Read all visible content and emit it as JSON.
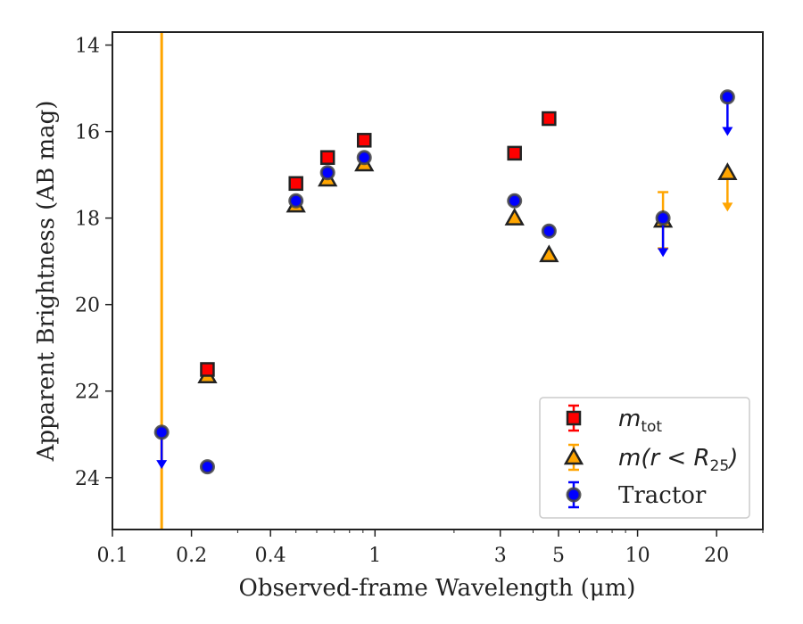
{
  "chart_data": {
    "type": "scatter",
    "xlabel": "Observed-frame Wavelength (μm)",
    "ylabel": "Apparent Brightness (AB mag)",
    "xscale": "log",
    "yaxis_inverted": true,
    "xlim": [
      0.1,
      30
    ],
    "ylim": [
      25.2,
      13.7
    ],
    "x_ticks": [
      0.1,
      0.2,
      0.4,
      1,
      3,
      5,
      10,
      20
    ],
    "x_tick_labels": [
      "0.1",
      "0.2",
      "0.4",
      "1",
      "3",
      "5",
      "10",
      "20"
    ],
    "y_ticks": [
      14,
      16,
      18,
      20,
      22,
      24
    ],
    "y_tick_labels": [
      "14",
      "16",
      "18",
      "20",
      "22",
      "24"
    ],
    "grid": false,
    "legend_position": "lower-right",
    "vertical_line": {
      "x": 0.154,
      "color": "#FFA500"
    },
    "series": [
      {
        "name": "m_tot",
        "legend_main": "m",
        "legend_sub": "tot",
        "marker": "square",
        "color": "#FF0000",
        "edge_color": "#222222",
        "points": [
          {
            "x": 0.23,
            "y": 21.5
          },
          {
            "x": 0.5,
            "y": 17.2
          },
          {
            "x": 0.66,
            "y": 16.6
          },
          {
            "x": 0.91,
            "y": 16.2
          },
          {
            "x": 3.4,
            "y": 16.5
          },
          {
            "x": 4.6,
            "y": 15.7
          }
        ],
        "upper_limits": []
      },
      {
        "name": "m(r < R25)",
        "legend_main": "m(r < R",
        "legend_sub": "25",
        "legend_close": ")",
        "marker": "triangle",
        "color": "#FFA500",
        "edge_color": "#222222",
        "points": [
          {
            "x": 0.23,
            "y": 21.65
          },
          {
            "x": 0.5,
            "y": 17.7
          },
          {
            "x": 0.66,
            "y": 17.1
          },
          {
            "x": 0.91,
            "y": 16.75
          },
          {
            "x": 3.4,
            "y": 18.0
          },
          {
            "x": 4.6,
            "y": 18.85
          },
          {
            "x": 12.5,
            "y": 18.05,
            "err_low": 17.4,
            "err_high": 18.7
          }
        ],
        "upper_limits": [
          {
            "x": 22.0,
            "y": 16.95,
            "to": 17.85
          }
        ]
      },
      {
        "name": "Tractor",
        "legend_main": "Tractor",
        "marker": "circle",
        "color": "#0000FF",
        "edge_color": "#444444",
        "points": [
          {
            "x": 0.23,
            "y": 23.75
          },
          {
            "x": 0.5,
            "y": 17.6
          },
          {
            "x": 0.66,
            "y": 16.95
          },
          {
            "x": 0.91,
            "y": 16.6
          },
          {
            "x": 3.4,
            "y": 17.6
          },
          {
            "x": 4.6,
            "y": 18.3
          }
        ],
        "upper_limits": [
          {
            "x": 0.154,
            "y": 22.95,
            "to": 23.8
          },
          {
            "x": 12.5,
            "y": 18.0,
            "to": 18.9
          },
          {
            "x": 22.0,
            "y": 15.2,
            "to": 16.1
          }
        ]
      }
    ]
  }
}
